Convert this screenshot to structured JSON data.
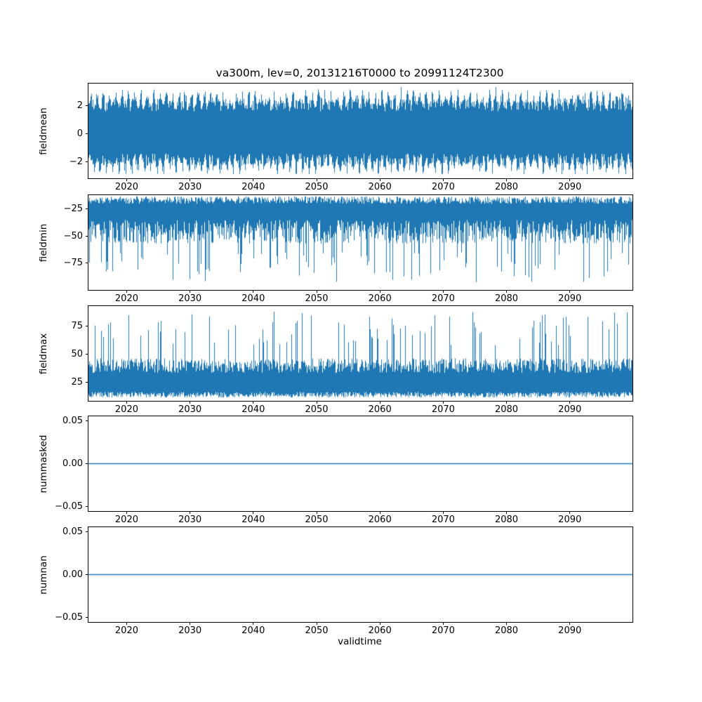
{
  "figure": {
    "title": "va300m, lev=0, 20131216T0000 to 20991124T2300",
    "xlabel": "validtime",
    "background": "#ffffff",
    "line_color": "#1f77b4",
    "xlim": [
      2013.96,
      2099.9
    ],
    "xticks": [
      {
        "v": 2020,
        "label": "2020"
      },
      {
        "v": 2030,
        "label": "2030"
      },
      {
        "v": 2040,
        "label": "2040"
      },
      {
        "v": 2050,
        "label": "2050"
      },
      {
        "v": 2060,
        "label": "2060"
      },
      {
        "v": 2070,
        "label": "2070"
      },
      {
        "v": 2080,
        "label": "2080"
      },
      {
        "v": 2090,
        "label": "2090"
      }
    ]
  },
  "chart_data": [
    {
      "type": "line",
      "name": "fieldmean",
      "ylabel": "fieldmean",
      "ylim": [
        -3.2,
        3.6
      ],
      "yticks": [
        {
          "v": -2,
          "label": "−2"
        },
        {
          "v": 0,
          "label": "0"
        },
        {
          "v": 2,
          "label": "2"
        }
      ],
      "series": [
        {
          "name": "fieldmean",
          "kind": "seasonal-band",
          "center": 0.1,
          "top_base": 1.5,
          "top_seasonal": 0.7,
          "bot_base": -1.5,
          "bot_seasonal": -0.7,
          "noise": 0.9,
          "ymax": 3.35,
          "ymin": -2.9
        }
      ]
    },
    {
      "type": "line",
      "name": "fieldmin",
      "ylabel": "fieldmin",
      "ylim": [
        -100,
        -12
      ],
      "yticks": [
        {
          "v": -25,
          "label": "−25"
        },
        {
          "v": -50,
          "label": "−50"
        },
        {
          "v": -75,
          "label": "−75"
        }
      ],
      "series": [
        {
          "name": "fieldmin",
          "kind": "spiky",
          "direction": "down",
          "edge": -13,
          "edge_noise": 7,
          "body": -35,
          "body_noise": 22,
          "spike_base": -65,
          "spike_noise": -28,
          "spike_prob": 0.16,
          "clamp": -96
        }
      ]
    },
    {
      "type": "line",
      "name": "fieldmax",
      "ylabel": "fieldmax",
      "ylim": [
        8,
        93
      ],
      "yticks": [
        {
          "v": 25,
          "label": "25"
        },
        {
          "v": 50,
          "label": "50"
        },
        {
          "v": 75,
          "label": "75"
        }
      ],
      "series": [
        {
          "name": "fieldmax",
          "kind": "spiky",
          "direction": "up",
          "edge": 11,
          "edge_noise": 5,
          "body": 33,
          "body_noise": 13,
          "spike_base": 58,
          "spike_noise": 30,
          "spike_prob": 0.16,
          "clamp": 90
        }
      ]
    },
    {
      "type": "line",
      "name": "nummasked",
      "ylabel": "nummasked",
      "ylim": [
        -0.055,
        0.055
      ],
      "yticks": [
        {
          "v": -0.05,
          "label": "−0.05"
        },
        {
          "v": 0,
          "label": "0.00"
        },
        {
          "v": 0.05,
          "label": "0.05"
        }
      ],
      "series": [
        {
          "name": "nummasked",
          "kind": "constant",
          "value": 0
        }
      ]
    },
    {
      "type": "line",
      "name": "numnan",
      "ylabel": "numnan",
      "ylim": [
        -0.055,
        0.055
      ],
      "yticks": [
        {
          "v": -0.05,
          "label": "−0.05"
        },
        {
          "v": 0,
          "label": "0.00"
        },
        {
          "v": 0.05,
          "label": "0.05"
        }
      ],
      "series": [
        {
          "name": "numnan",
          "kind": "constant",
          "value": 0
        }
      ]
    }
  ]
}
